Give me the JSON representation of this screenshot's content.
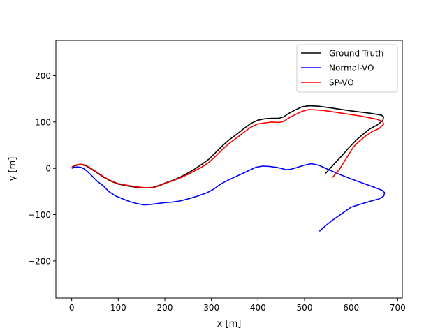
{
  "chart_data": {
    "type": "line",
    "title": "",
    "xlabel": "x [m]",
    "ylabel": "y [m]",
    "xlim": [
      -34,
      710
    ],
    "ylim": [
      -280,
      276
    ],
    "xticks": [
      0,
      100,
      200,
      300,
      400,
      500,
      600,
      700
    ],
    "yticks": [
      -200,
      -100,
      0,
      100,
      200
    ],
    "xtick_labels": [
      "0",
      "100",
      "200",
      "300",
      "400",
      "500",
      "600",
      "700"
    ],
    "ytick_labels": [
      "−200",
      "−100",
      "0",
      "100",
      "200"
    ],
    "legend_position": "top-right",
    "grid": false,
    "series": [
      {
        "name": "Ground Truth",
        "color": "#000000",
        "points": [
          [
            0,
            0
          ],
          [
            5,
            5
          ],
          [
            12,
            7
          ],
          [
            20,
            8
          ],
          [
            30,
            6
          ],
          [
            40,
            0
          ],
          [
            55,
            -10
          ],
          [
            70,
            -20
          ],
          [
            85,
            -28
          ],
          [
            100,
            -34
          ],
          [
            120,
            -38
          ],
          [
            140,
            -41
          ],
          [
            160,
            -42
          ],
          [
            175,
            -41
          ],
          [
            190,
            -36
          ],
          [
            205,
            -30
          ],
          [
            220,
            -25
          ],
          [
            235,
            -18
          ],
          [
            250,
            -10
          ],
          [
            265,
            -1
          ],
          [
            280,
            9
          ],
          [
            295,
            20
          ],
          [
            310,
            35
          ],
          [
            325,
            50
          ],
          [
            340,
            63
          ],
          [
            355,
            74
          ],
          [
            370,
            86
          ],
          [
            385,
            97
          ],
          [
            400,
            104
          ],
          [
            415,
            107
          ],
          [
            430,
            108
          ],
          [
            445,
            108
          ],
          [
            455,
            111
          ],
          [
            465,
            118
          ],
          [
            480,
            126
          ],
          [
            495,
            133
          ],
          [
            510,
            135
          ],
          [
            530,
            134
          ],
          [
            560,
            130
          ],
          [
            600,
            124
          ],
          [
            640,
            119
          ],
          [
            665,
            115
          ],
          [
            670,
            111
          ],
          [
            668,
            103
          ],
          [
            655,
            93
          ],
          [
            640,
            85
          ],
          [
            625,
            73
          ],
          [
            610,
            60
          ],
          [
            595,
            44
          ],
          [
            580,
            27
          ],
          [
            565,
            11
          ],
          [
            555,
            0
          ],
          [
            545,
            -11
          ]
        ]
      },
      {
        "name": "Normal-VO",
        "color": "#0000ff",
        "points": [
          [
            0,
            0
          ],
          [
            5,
            2
          ],
          [
            12,
            3
          ],
          [
            20,
            2
          ],
          [
            28,
            -2
          ],
          [
            35,
            -8
          ],
          [
            45,
            -18
          ],
          [
            55,
            -28
          ],
          [
            68,
            -38
          ],
          [
            80,
            -50
          ],
          [
            95,
            -60
          ],
          [
            110,
            -66
          ],
          [
            125,
            -72
          ],
          [
            140,
            -76
          ],
          [
            155,
            -79
          ],
          [
            170,
            -78
          ],
          [
            185,
            -76
          ],
          [
            200,
            -74
          ],
          [
            215,
            -73
          ],
          [
            230,
            -71
          ],
          [
            250,
            -66
          ],
          [
            270,
            -60
          ],
          [
            290,
            -53
          ],
          [
            305,
            -45
          ],
          [
            320,
            -34
          ],
          [
            335,
            -26
          ],
          [
            350,
            -19
          ],
          [
            365,
            -12
          ],
          [
            380,
            -5
          ],
          [
            395,
            2
          ],
          [
            410,
            5
          ],
          [
            425,
            4
          ],
          [
            440,
            2
          ],
          [
            450,
            0
          ],
          [
            460,
            -3
          ],
          [
            470,
            -2
          ],
          [
            485,
            2
          ],
          [
            500,
            7
          ],
          [
            515,
            10
          ],
          [
            530,
            7
          ],
          [
            550,
            -2
          ],
          [
            575,
            -13
          ],
          [
            600,
            -23
          ],
          [
            625,
            -32
          ],
          [
            650,
            -41
          ],
          [
            668,
            -48
          ],
          [
            672,
            -53
          ],
          [
            670,
            -60
          ],
          [
            660,
            -66
          ],
          [
            645,
            -70
          ],
          [
            625,
            -76
          ],
          [
            600,
            -84
          ],
          [
            580,
            -98
          ],
          [
            560,
            -112
          ],
          [
            545,
            -124
          ],
          [
            532,
            -136
          ]
        ]
      },
      {
        "name": "SP-VO",
        "color": "#ff0000",
        "points": [
          [
            0,
            2
          ],
          [
            5,
            6
          ],
          [
            12,
            8
          ],
          [
            20,
            9
          ],
          [
            30,
            7
          ],
          [
            40,
            1
          ],
          [
            55,
            -9
          ],
          [
            70,
            -19
          ],
          [
            85,
            -27
          ],
          [
            100,
            -33
          ],
          [
            120,
            -37
          ],
          [
            140,
            -40
          ],
          [
            160,
            -42
          ],
          [
            175,
            -42
          ],
          [
            190,
            -37
          ],
          [
            205,
            -31
          ],
          [
            220,
            -26
          ],
          [
            235,
            -20
          ],
          [
            250,
            -13
          ],
          [
            265,
            -5
          ],
          [
            280,
            3
          ],
          [
            295,
            13
          ],
          [
            310,
            27
          ],
          [
            325,
            42
          ],
          [
            340,
            55
          ],
          [
            355,
            66
          ],
          [
            370,
            78
          ],
          [
            385,
            89
          ],
          [
            400,
            96
          ],
          [
            415,
            98
          ],
          [
            430,
            100
          ],
          [
            445,
            99
          ],
          [
            455,
            101
          ],
          [
            465,
            108
          ],
          [
            480,
            116
          ],
          [
            495,
            123
          ],
          [
            510,
            127
          ],
          [
            540,
            125
          ],
          [
            580,
            119
          ],
          [
            620,
            113
          ],
          [
            655,
            106
          ],
          [
            668,
            101
          ],
          [
            670,
            95
          ],
          [
            660,
            86
          ],
          [
            645,
            79
          ],
          [
            630,
            69
          ],
          [
            615,
            56
          ],
          [
            605,
            46
          ],
          [
            595,
            30
          ],
          [
            585,
            14
          ],
          [
            575,
            -2
          ],
          [
            565,
            -14
          ],
          [
            560,
            -20
          ]
        ]
      }
    ]
  }
}
